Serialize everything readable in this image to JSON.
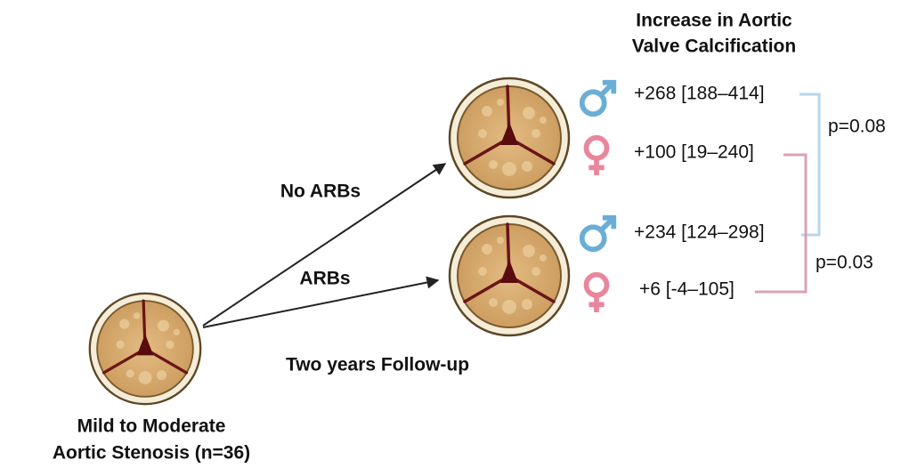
{
  "baseline": {
    "lines": [
      "Mild to Moderate",
      "Aortic Stenosis (n=36)"
    ]
  },
  "arms": {
    "no_arbs": "No ARBs",
    "arbs": "ARBs"
  },
  "follow_up": "Two years Follow-up",
  "header": {
    "lines": [
      "Increase in Aortic",
      "Valve Calcification"
    ]
  },
  "results": {
    "no_arbs": {
      "male": "+268 [188–414]",
      "female": "+100 [19–240]"
    },
    "arbs": {
      "male": "+234 [124–298]",
      "female": "+6 [-4–105]"
    }
  },
  "comparisons": {
    "male": "p=0.08",
    "female": "p=0.03"
  }
}
